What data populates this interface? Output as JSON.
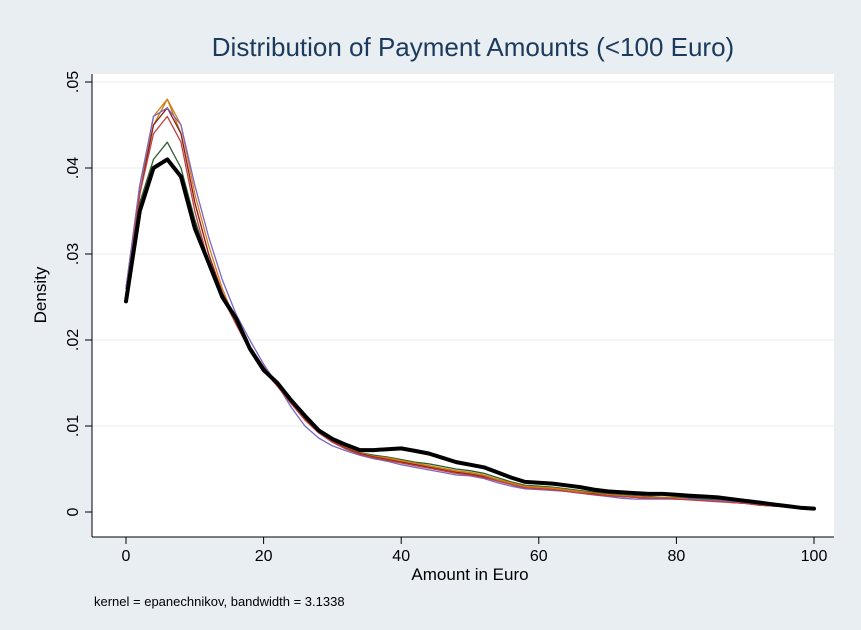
{
  "chart_data": {
    "type": "line",
    "title": "Distribution of Payment Amounts (<100 Euro)",
    "xlabel": "Amount in Euro",
    "ylabel": "Density",
    "note": "kernel = epanechnikov, bandwidth = 3.1338",
    "xlim": [
      0,
      100
    ],
    "ylim": [
      0,
      0.05
    ],
    "x_ticks": [
      "0",
      "20",
      "40",
      "60",
      "80",
      "100"
    ],
    "y_ticks": [
      "0",
      ".01",
      ".02",
      ".03",
      ".04",
      ".05"
    ],
    "grid": true,
    "x": [
      0,
      2,
      4,
      6,
      8,
      10,
      12,
      14,
      16,
      18,
      20,
      22,
      24,
      26,
      28,
      30,
      32,
      34,
      36,
      38,
      40,
      42,
      44,
      46,
      48,
      50,
      52,
      54,
      56,
      58,
      60,
      62,
      64,
      66,
      68,
      70,
      72,
      74,
      76,
      78,
      80,
      82,
      84,
      86,
      88,
      90,
      92,
      94,
      96,
      98,
      100
    ],
    "series": [
      {
        "color": "#000000",
        "width": 4,
        "values": [
          0.0245,
          0.035,
          0.04,
          0.041,
          0.039,
          0.033,
          0.029,
          0.025,
          0.0225,
          0.019,
          0.0165,
          0.015,
          0.013,
          0.0112,
          0.0095,
          0.0085,
          0.0078,
          0.0072,
          0.0072,
          0.0073,
          0.0074,
          0.0071,
          0.0068,
          0.0063,
          0.0058,
          0.0055,
          0.0052,
          0.0046,
          0.004,
          0.0035,
          0.0034,
          0.0033,
          0.0031,
          0.0029,
          0.0026,
          0.0024,
          0.0023,
          0.0022,
          0.0021,
          0.0021,
          0.002,
          0.0019,
          0.0018,
          0.0017,
          0.0015,
          0.0013,
          0.0011,
          0.0009,
          0.0007,
          0.0005,
          0.0004
        ]
      },
      {
        "color": "#2e5e2e",
        "width": 1.3,
        "values": [
          0.025,
          0.036,
          0.041,
          0.043,
          0.04,
          0.034,
          0.029,
          0.025,
          0.022,
          0.019,
          0.0165,
          0.0147,
          0.0127,
          0.0108,
          0.0094,
          0.0083,
          0.0075,
          0.0069,
          0.0066,
          0.0064,
          0.0061,
          0.0058,
          0.0056,
          0.0053,
          0.005,
          0.0048,
          0.0045,
          0.004,
          0.0035,
          0.0031,
          0.003,
          0.0029,
          0.0027,
          0.0025,
          0.0023,
          0.0021,
          0.002,
          0.0019,
          0.0018,
          0.0017,
          0.0017,
          0.0016,
          0.0015,
          0.0014,
          0.0012,
          0.0011,
          0.0009,
          0.0008,
          0.0006,
          0.0005,
          0.0004
        ]
      },
      {
        "color": "#b8860b",
        "width": 1.3,
        "values": [
          0.026,
          0.038,
          0.045,
          0.048,
          0.044,
          0.036,
          0.03,
          0.0255,
          0.022,
          0.0192,
          0.0168,
          0.015,
          0.0128,
          0.0109,
          0.0094,
          0.0083,
          0.0075,
          0.0069,
          0.0065,
          0.0063,
          0.006,
          0.0057,
          0.0054,
          0.0051,
          0.0048,
          0.0046,
          0.0043,
          0.0038,
          0.0034,
          0.003,
          0.0029,
          0.0028,
          0.0026,
          0.0024,
          0.0022,
          0.002,
          0.0019,
          0.0018,
          0.0017,
          0.0017,
          0.0016,
          0.0015,
          0.0014,
          0.0013,
          0.0012,
          0.001,
          0.0009,
          0.0007,
          0.0006,
          0.0005,
          0.0004
        ]
      },
      {
        "color": "#e07a20",
        "width": 1.3,
        "values": [
          0.026,
          0.038,
          0.046,
          0.048,
          0.045,
          0.037,
          0.031,
          0.026,
          0.022,
          0.019,
          0.0167,
          0.0148,
          0.0127,
          0.0107,
          0.0093,
          0.0082,
          0.0074,
          0.0068,
          0.0064,
          0.0062,
          0.0059,
          0.0056,
          0.0053,
          0.005,
          0.0047,
          0.0045,
          0.0042,
          0.0037,
          0.0033,
          0.0029,
          0.0028,
          0.0027,
          0.0025,
          0.0023,
          0.0021,
          0.002,
          0.0019,
          0.0018,
          0.0017,
          0.0016,
          0.0016,
          0.0015,
          0.0014,
          0.0013,
          0.0011,
          0.001,
          0.0008,
          0.0007,
          0.0006,
          0.0005,
          0.0004
        ]
      },
      {
        "color": "#8b2020",
        "width": 1.3,
        "values": [
          0.026,
          0.037,
          0.045,
          0.047,
          0.044,
          0.036,
          0.03,
          0.0255,
          0.0222,
          0.0193,
          0.0169,
          0.0149,
          0.0128,
          0.0108,
          0.0093,
          0.0082,
          0.0074,
          0.0068,
          0.0064,
          0.0061,
          0.0058,
          0.0055,
          0.0052,
          0.0049,
          0.0046,
          0.0044,
          0.0041,
          0.0036,
          0.0032,
          0.0028,
          0.0027,
          0.0026,
          0.0024,
          0.0022,
          0.0021,
          0.0019,
          0.0018,
          0.0017,
          0.0016,
          0.0016,
          0.0015,
          0.0015,
          0.0014,
          0.0013,
          0.0011,
          0.001,
          0.0008,
          0.0007,
          0.0006,
          0.0005,
          0.0004
        ]
      },
      {
        "color": "#7b68c0",
        "width": 1.3,
        "values": [
          0.026,
          0.038,
          0.046,
          0.047,
          0.045,
          0.038,
          0.032,
          0.027,
          0.023,
          0.02,
          0.0172,
          0.0148,
          0.0122,
          0.01,
          0.0086,
          0.0077,
          0.0071,
          0.0066,
          0.0062,
          0.0059,
          0.0055,
          0.0052,
          0.0049,
          0.0046,
          0.0043,
          0.0042,
          0.0039,
          0.0034,
          0.003,
          0.0027,
          0.0026,
          0.0025,
          0.0024,
          0.0022,
          0.002,
          0.0018,
          0.0016,
          0.0015,
          0.0015,
          0.0015,
          0.0015,
          0.0015,
          0.0014,
          0.0013,
          0.0012,
          0.001,
          0.0009,
          0.0007,
          0.0006,
          0.0005,
          0.0004
        ]
      },
      {
        "color": "#c04040",
        "width": 1.3,
        "values": [
          0.025,
          0.037,
          0.044,
          0.046,
          0.043,
          0.035,
          0.029,
          0.025,
          0.0218,
          0.0188,
          0.0165,
          0.0146,
          0.0126,
          0.0107,
          0.0092,
          0.0081,
          0.0073,
          0.0067,
          0.0063,
          0.006,
          0.0057,
          0.0054,
          0.0051,
          0.0048,
          0.0045,
          0.0043,
          0.004,
          0.0036,
          0.0032,
          0.0028,
          0.0027,
          0.0026,
          0.0024,
          0.0022,
          0.002,
          0.0019,
          0.0018,
          0.0017,
          0.0016,
          0.0016,
          0.0015,
          0.0014,
          0.0013,
          0.0012,
          0.0011,
          0.001,
          0.0008,
          0.0007,
          0.0006,
          0.0005,
          0.0004
        ]
      }
    ]
  }
}
